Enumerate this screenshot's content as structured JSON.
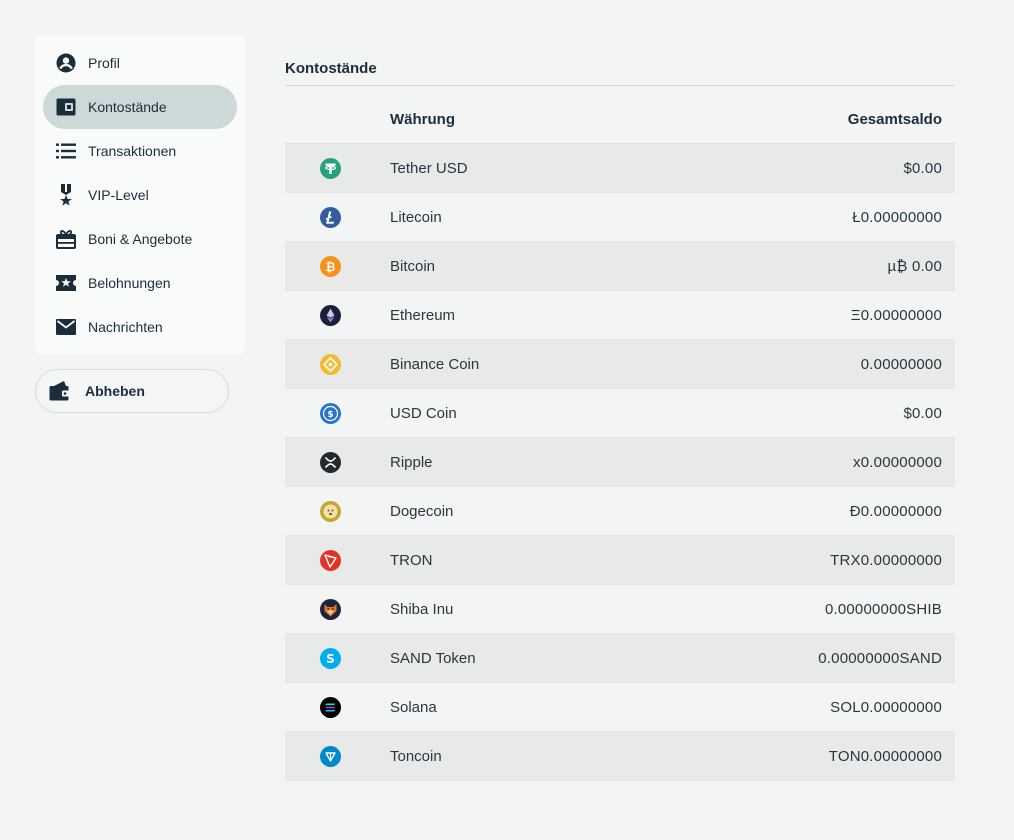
{
  "sidebar": {
    "items": [
      {
        "label": "Profil",
        "icon": "user-circle-icon",
        "active": false
      },
      {
        "label": "Kontostände",
        "icon": "wallet-icon",
        "active": true
      },
      {
        "label": "Transaktionen",
        "icon": "list-icon",
        "active": false
      },
      {
        "label": "VIP-Level",
        "icon": "medal-icon",
        "active": false
      },
      {
        "label": "Boni & Angebote",
        "icon": "gift-icon",
        "active": false
      },
      {
        "label": "Belohnungen",
        "icon": "ticket-star-icon",
        "active": false
      },
      {
        "label": "Nachrichten",
        "icon": "envelope-icon",
        "active": false
      }
    ],
    "withdraw_label": "Abheben"
  },
  "main": {
    "title": "Kontostände",
    "table": {
      "col_currency": "Währung",
      "col_balance": "Gesamtsaldo",
      "rows": [
        {
          "name": "Tether USD",
          "balance": "$0.00",
          "icon": "tether-icon",
          "color": "#26a17b"
        },
        {
          "name": "Litecoin",
          "balance": "Ł0.00000000",
          "icon": "litecoin-icon",
          "color": "#345d9d"
        },
        {
          "name": "Bitcoin",
          "balance": "µ₿ 0.00",
          "icon": "bitcoin-icon",
          "color": "#f7931a"
        },
        {
          "name": "Ethereum",
          "balance": "Ξ0.00000000",
          "icon": "ethereum-icon",
          "color": "#1b1f3a"
        },
        {
          "name": "Binance Coin",
          "balance": "0.00000000",
          "icon": "binance-icon",
          "color": "#f3ba2f"
        },
        {
          "name": "USD Coin",
          "balance": "$0.00",
          "icon": "usd-coin-icon",
          "color": "#2775ca"
        },
        {
          "name": "Ripple",
          "balance": "x0.00000000",
          "icon": "ripple-icon",
          "color": "#23292f"
        },
        {
          "name": "Dogecoin",
          "balance": "Đ0.00000000",
          "icon": "dogecoin-icon",
          "color": "#c2a633"
        },
        {
          "name": "TRON",
          "balance": "TRX0.00000000",
          "icon": "tron-icon",
          "color": "#e0342b"
        },
        {
          "name": "Shiba Inu",
          "balance": "0.00000000SHIB",
          "icon": "shiba-icon",
          "color": "#e4761b"
        },
        {
          "name": "SAND Token",
          "balance": "0.00000000SAND",
          "icon": "sand-icon",
          "color": "#00adef"
        },
        {
          "name": "Solana",
          "balance": "SOL0.00000000",
          "icon": "solana-icon",
          "color": "#000000"
        },
        {
          "name": "Toncoin",
          "balance": "TON0.00000000",
          "icon": "toncoin-icon",
          "color": "#0088cc"
        }
      ]
    }
  }
}
